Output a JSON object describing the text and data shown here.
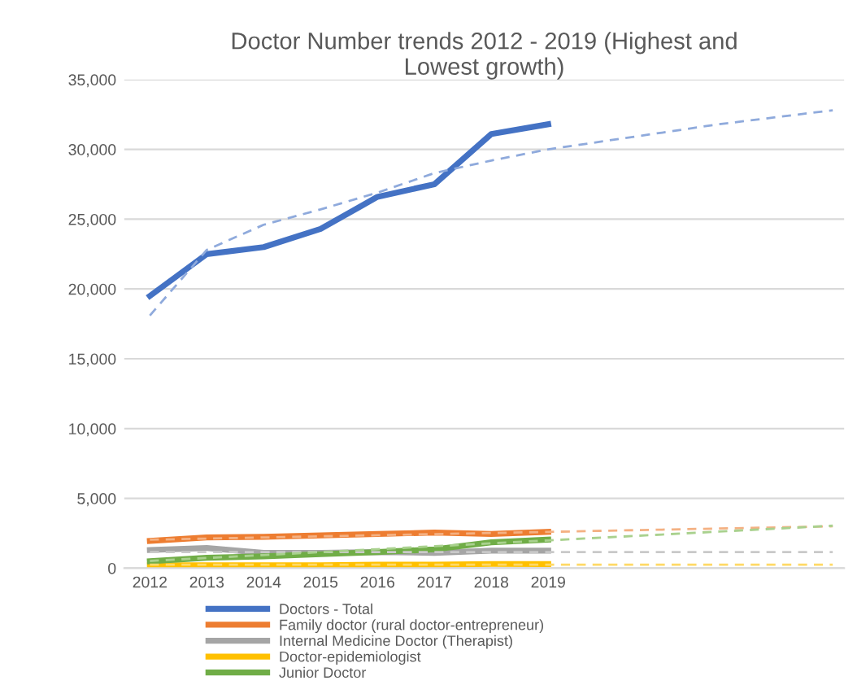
{
  "chart_data": {
    "type": "line",
    "title": "Doctor Number trends 2012 - 2019 (Highest and\nLowest growth)",
    "categories": [
      "2012",
      "2013",
      "2014",
      "2015",
      "2016",
      "2017",
      "2018",
      "2019",
      null,
      null,
      null,
      null,
      null
    ],
    "series": [
      {
        "name": "Doctors - Total",
        "color": "#4472c4",
        "values": [
          19500,
          22500,
          23000,
          24300,
          26600,
          27500,
          31100,
          31800,
          null,
          null,
          null,
          null,
          null
        ]
      },
      {
        "name": "Family doctor (rural doctor-entrepreneur)",
        "color": "#ed7d31",
        "values": [
          1950,
          2200,
          2250,
          2350,
          2450,
          2550,
          2450,
          2600,
          null,
          null,
          null,
          null,
          null
        ]
      },
      {
        "name": "Internal Medicine Doctor (Therapist)",
        "color": "#a5a5a5",
        "values": [
          1300,
          1450,
          1100,
          1100,
          1150,
          1100,
          1250,
          1250,
          null,
          null,
          null,
          null,
          null
        ]
      },
      {
        "name": "Doctor-epidemiologist",
        "color": "#ffc000",
        "values": [
          200,
          200,
          200,
          200,
          250,
          250,
          300,
          300,
          null,
          null,
          null,
          null,
          null
        ]
      },
      {
        "name": "Junior Doctor",
        "color": "#70ad47",
        "values": [
          500,
          750,
          850,
          1000,
          1150,
          1350,
          1850,
          2050,
          null,
          null,
          null,
          null,
          null
        ]
      },
      {
        "color": "#8faadc",
        "line_style": "dashed",
        "values": [
          18100,
          22800,
          24600,
          25700,
          26900,
          28300,
          29200,
          30000,
          30600,
          31200,
          31800,
          32300,
          32800
        ]
      },
      {
        "color": "#f4b183",
        "line_style": "dashed",
        "values": [
          2040,
          2120,
          2200,
          2280,
          2360,
          2440,
          2520,
          2600,
          2680,
          2760,
          2840,
          2920,
          3000
        ]
      },
      {
        "color": "#c9c9c9",
        "line_style": "dashed",
        "values": [
          1150,
          1150,
          1150,
          1150,
          1150,
          1150,
          1150,
          1150,
          1150,
          1150,
          1150,
          1150,
          1150
        ]
      },
      {
        "color": "#ffd966",
        "line_style": "dashed",
        "values": [
          250,
          250,
          250,
          250,
          250,
          250,
          250,
          250,
          250,
          250,
          250,
          250,
          250
        ]
      },
      {
        "color": "#a9d18e",
        "line_style": "dashed",
        "values": [
          520,
          730,
          940,
          1150,
          1360,
          1570,
          1780,
          1990,
          2200,
          2410,
          2620,
          2830,
          3040
        ]
      }
    ],
    "ylim": [
      0,
      35000
    ],
    "yticks": [
      0,
      {
        "value": 5000,
        "label": "5,000"
      },
      {
        "value": 10000,
        "label": "10,000"
      },
      {
        "value": 15000,
        "label": "15,000"
      },
      {
        "value": 20000,
        "label": "20,000"
      },
      {
        "value": 25000,
        "label": "25,000"
      },
      {
        "value": 30000,
        "label": "30,000"
      },
      {
        "value": 35000,
        "label": "35,000"
      }
    ],
    "grid": "y",
    "legend": "bottom",
    "line_style": "solid"
  }
}
